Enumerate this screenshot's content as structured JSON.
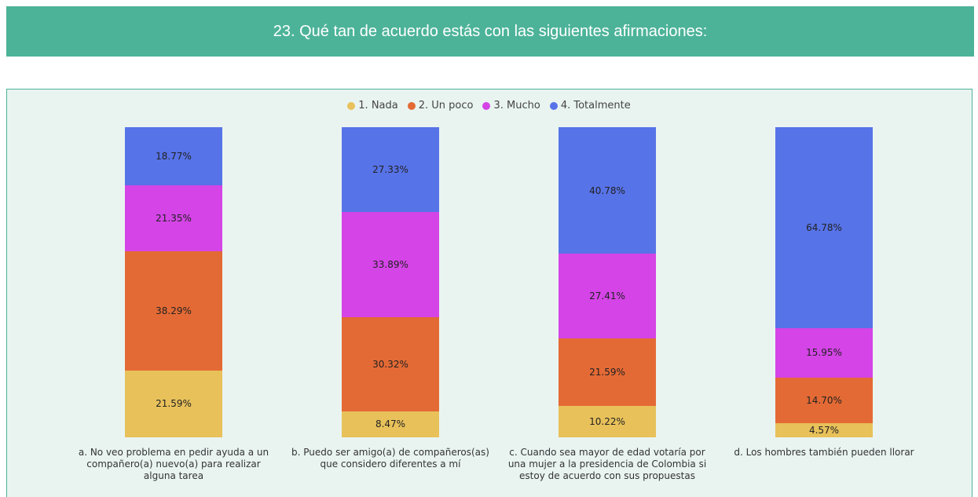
{
  "chart_data": {
    "type": "bar",
    "stacked": true,
    "title": "23. Qué tan de acuerdo estás con las siguientes afirmaciones:",
    "legend": "top",
    "categories": [
      "a. No veo problema en pedir ayuda a un compañero(a) nuevo(a) para realizar alguna tarea",
      "b. Puedo ser amigo(a) de compañeros(as) que considero diferentes a mí",
      "c. Cuando sea mayor de edad votaría por una mujer a la presidencia de Colombia si estoy de acuerdo con sus propuestas",
      "d. Los hombres también pueden llorar"
    ],
    "series": [
      {
        "name": "1. Nada",
        "color": "#e8c15a",
        "values": [
          21.59,
          8.47,
          10.22,
          4.57
        ],
        "value_labels": [
          "21.59%",
          "8.47%",
          "10.22%",
          "4.57%"
        ]
      },
      {
        "name": "2. Un poco",
        "color": "#e46a35",
        "values": [
          38.29,
          30.32,
          21.59,
          14.7
        ],
        "value_labels": [
          "38.29%",
          "30.32%",
          "21.59%",
          "14.70%"
        ]
      },
      {
        "name": "3. Mucho",
        "color": "#d444e6",
        "values": [
          21.35,
          33.89,
          27.41,
          15.95
        ],
        "value_labels": [
          "21.35%",
          "33.89%",
          "27.41%",
          "15.95%"
        ]
      },
      {
        "name": "4. Totalmente",
        "color": "#5773e8",
        "values": [
          18.77,
          27.33,
          40.78,
          64.78
        ],
        "value_labels": [
          "18.77%",
          "27.33%",
          "40.78%",
          "64.78%"
        ]
      }
    ]
  }
}
